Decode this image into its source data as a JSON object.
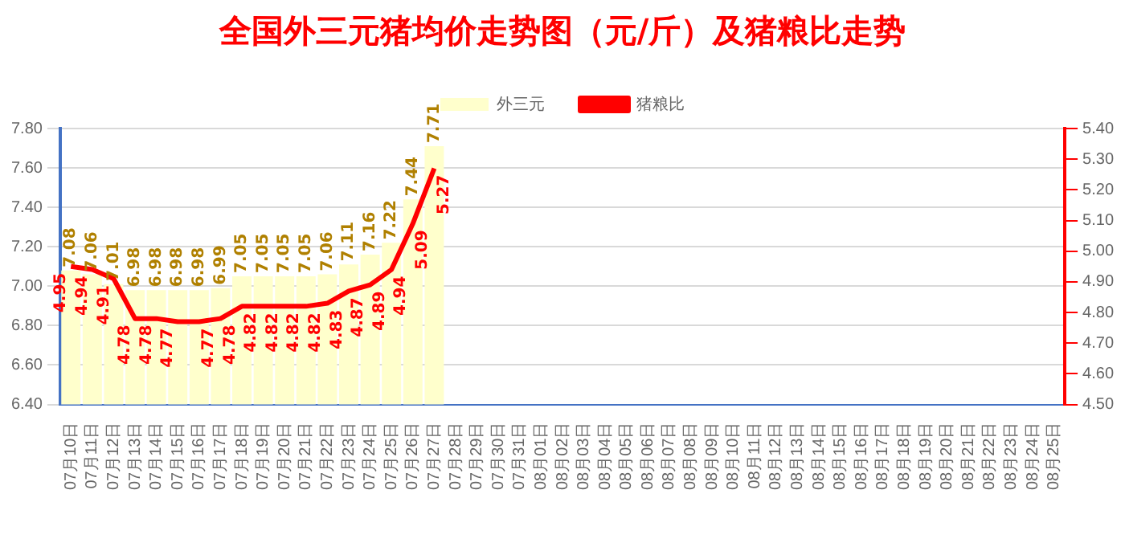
{
  "chart_data": {
    "type": "bar",
    "title": "全国外三元猪均价走势图（元/斤）及猪粮比走势",
    "categories": [
      "07月10日",
      "07月11日",
      "07月12日",
      "07月13日",
      "07月14日",
      "07月15日",
      "07月16日",
      "07月17日",
      "07月18日",
      "07月19日",
      "07月20日",
      "07月21日",
      "07月22日",
      "07月23日",
      "07月24日",
      "07月25日",
      "07月26日",
      "07月27日",
      "07月28日",
      "07月29日",
      "07月30日",
      "07月31日",
      "08月01日",
      "08月02日",
      "08月03日",
      "08月04日",
      "08月05日",
      "08月06日",
      "08月07日",
      "08月08日",
      "08月09日",
      "08月10日",
      "08月11日",
      "08月12日",
      "08月13日",
      "08月14日",
      "08月15日",
      "08月16日",
      "08月17日",
      "08月18日",
      "08月19日",
      "08月20日",
      "08月21日",
      "08月22日",
      "08月23日",
      "08月24日",
      "08月25日"
    ],
    "series": [
      {
        "name": "外三元",
        "type": "bar",
        "color": "#ffffcc",
        "values": [
          7.08,
          7.06,
          7.01,
          6.98,
          6.98,
          6.98,
          6.98,
          6.99,
          7.05,
          7.05,
          7.05,
          7.05,
          7.06,
          7.11,
          7.16,
          7.22,
          7.44,
          7.71,
          null,
          null,
          null,
          null,
          null,
          null,
          null,
          null,
          null,
          null,
          null,
          null,
          null,
          null,
          null,
          null,
          null,
          null,
          null,
          null,
          null,
          null,
          null,
          null,
          null,
          null,
          null,
          null,
          null
        ]
      },
      {
        "name": "猪粮比",
        "type": "line",
        "axis": "y2",
        "color": "#ff0000",
        "values": [
          4.95,
          4.94,
          4.91,
          4.78,
          4.78,
          4.77,
          4.77,
          4.78,
          4.82,
          4.82,
          4.82,
          4.82,
          4.83,
          4.87,
          4.89,
          4.94,
          5.09,
          5.27,
          null,
          null,
          null,
          null,
          null,
          null,
          null,
          null,
          null,
          null,
          null,
          null,
          null,
          null,
          null,
          null,
          null,
          null,
          null,
          null,
          null,
          null,
          null,
          null,
          null,
          null,
          null,
          null,
          null
        ]
      }
    ],
    "ylim": [
      6.4,
      7.8
    ],
    "yticks": [
      {
        "value": 6.4,
        "label": "6.40"
      },
      {
        "value": 6.6,
        "label": "6.60"
      },
      {
        "value": 6.8,
        "label": "6.80"
      },
      {
        "value": 7.0,
        "label": "7.00"
      },
      {
        "value": 7.2,
        "label": "7.20"
      },
      {
        "value": 7.4,
        "label": "7.40"
      },
      {
        "value": 7.6,
        "label": "7.60"
      },
      {
        "value": 7.8,
        "label": "7.80"
      }
    ],
    "y2lim": [
      4.5,
      5.4
    ],
    "y2ticks": [
      {
        "value": 4.5,
        "label": "4.50"
      },
      {
        "value": 4.6,
        "label": "4.60"
      },
      {
        "value": 4.7,
        "label": "4.70"
      },
      {
        "value": 4.8,
        "label": "4.80"
      },
      {
        "value": 4.9,
        "label": "4.90"
      },
      {
        "value": 5.0,
        "label": "5.00"
      },
      {
        "value": 5.1,
        "label": "5.10"
      },
      {
        "value": 5.2,
        "label": "5.20"
      },
      {
        "value": 5.3,
        "label": "5.30"
      },
      {
        "value": 5.4,
        "label": "5.40"
      }
    ],
    "grid": "y",
    "legend": "top",
    "marker": "none",
    "line_style": "solid",
    "data_labels": true
  }
}
